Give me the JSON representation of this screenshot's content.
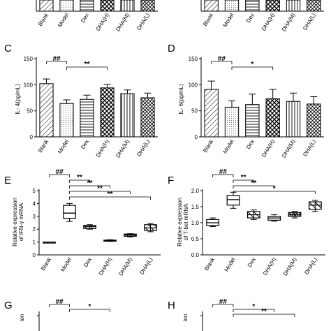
{
  "panels": {
    "A": {
      "letter": "",
      "type": "bar",
      "visible": "xlabels-only",
      "categories": [
        "Blank",
        "Model",
        "Dex",
        "DHA(H)",
        "DHA(M)",
        "DHA(L)"
      ]
    },
    "B": {
      "letter": "",
      "type": "bar",
      "visible": "xlabels-only",
      "categories": [
        "Blank",
        "Model",
        "Dex",
        "DHA(H)",
        "DHA(M)",
        "DHA(L)"
      ]
    },
    "C": {
      "letter": "C",
      "ylabel": "IL- 4(pg/mL)"
    },
    "D": {
      "letter": "D",
      "ylabel": "IL- 6(pg/mL)"
    },
    "E": {
      "letter": "E",
      "ylabel_line1": "Relative expression",
      "ylabel_line2": "of IFN-γ mRNA"
    },
    "F": {
      "letter": "F",
      "ylabel_line1": "Relative expression",
      "ylabel_line2": "of T-bet mRNA"
    },
    "G": {
      "letter": "G",
      "ylabel": "ion",
      "brackets": [
        {
          "label": "##"
        },
        {
          "label": "*"
        }
      ]
    },
    "H": {
      "letter": "H",
      "ylabel": "ion",
      "brackets": [
        {
          "label": "##"
        },
        {
          "label": "*"
        },
        {
          "label": "**"
        }
      ]
    }
  },
  "chart_data": [
    {
      "panel": "C",
      "type": "bar",
      "categories": [
        "Blank",
        "Model",
        "Dex",
        "DHA(H)",
        "DHA(M)",
        "DHA(L)"
      ],
      "values": [
        102,
        64,
        72,
        94,
        83,
        75
      ],
      "errors": [
        9,
        7,
        8,
        7,
        7,
        9
      ],
      "ylabel": "IL- 4(pg/mL)",
      "ylim": [
        0,
        150
      ],
      "yticks": [
        0,
        50,
        100,
        150
      ],
      "brackets": [
        {
          "from": "Blank",
          "to": "Model",
          "label": "##"
        },
        {
          "from": "Model",
          "to": "DHA(H)",
          "label": "**"
        }
      ]
    },
    {
      "panel": "D",
      "type": "bar",
      "categories": [
        "Blank",
        "Model",
        "Dex",
        "DHA(H)",
        "DHA(M)",
        "DHA(L)"
      ],
      "values": [
        91,
        57,
        62,
        73,
        68,
        63
      ],
      "errors": [
        16,
        12,
        20,
        18,
        16,
        14
      ],
      "ylabel": "IL- 6(pg/mL)",
      "ylim": [
        0,
        150
      ],
      "yticks": [
        0,
        50,
        100,
        150
      ],
      "brackets": [
        {
          "from": "Blank",
          "to": "Model",
          "label": "##"
        },
        {
          "from": "Model",
          "to": "DHA(H)",
          "label": "*"
        }
      ]
    },
    {
      "panel": "E",
      "type": "box",
      "categories": [
        "Blank",
        "Model",
        "Dex",
        "DHA(H)",
        "DHA(M)",
        "DHA(L)"
      ],
      "boxes": [
        {
          "min": 1.0,
          "q1": 1.0,
          "median": 1.0,
          "q3": 1.0,
          "max": 1.0
        },
        {
          "min": 2.6,
          "q1": 2.85,
          "median": 3.25,
          "q3": 3.85,
          "max": 4.0
        },
        {
          "min": 2.0,
          "q1": 2.05,
          "median": 2.2,
          "q3": 2.3,
          "max": 2.35
        },
        {
          "min": 1.05,
          "q1": 1.08,
          "median": 1.12,
          "q3": 1.15,
          "max": 1.18
        },
        {
          "min": 1.4,
          "q1": 1.45,
          "median": 1.55,
          "q3": 1.62,
          "max": 1.65
        },
        {
          "min": 1.8,
          "q1": 1.9,
          "median": 2.1,
          "q3": 2.35,
          "max": 2.45
        }
      ],
      "ylabel": "Relative expression of IFN-γ mRNA",
      "ylim": [
        0,
        5
      ],
      "yticks": [
        0,
        1,
        2,
        3,
        4,
        5
      ],
      "brackets": [
        {
          "from": "Blank",
          "to": "Model",
          "label": "##"
        },
        {
          "from": "Model",
          "to": "Dex",
          "label": "**"
        },
        {
          "from": "Model",
          "to": "DHA(H)",
          "label": "**"
        },
        {
          "from": "Model",
          "to": "DHA(M)",
          "label": "**"
        },
        {
          "from": "Model",
          "to": "DHA(L)",
          "label": "**"
        }
      ]
    },
    {
      "panel": "F",
      "type": "box",
      "categories": [
        "Blank",
        "Model",
        "Dex",
        "DHA(H)",
        "DHA(M)",
        "DHA(L)"
      ],
      "boxes": [
        {
          "min": 0.88,
          "q1": 0.92,
          "median": 1.0,
          "q3": 1.1,
          "max": 1.15
        },
        {
          "min": 1.45,
          "q1": 1.55,
          "median": 1.72,
          "q3": 1.85,
          "max": 1.95
        },
        {
          "min": 1.1,
          "q1": 1.15,
          "median": 1.25,
          "q3": 1.35,
          "max": 1.4
        },
        {
          "min": 1.05,
          "q1": 1.08,
          "median": 1.15,
          "q3": 1.2,
          "max": 1.25
        },
        {
          "min": 1.15,
          "q1": 1.2,
          "median": 1.25,
          "q3": 1.32,
          "max": 1.35
        },
        {
          "min": 1.35,
          "q1": 1.42,
          "median": 1.55,
          "q3": 1.65,
          "max": 1.7
        }
      ],
      "ylabel": "Relative expression of T-bet mRNA",
      "ylim": [
        0,
        2.0
      ],
      "yticks": [
        0.0,
        0.5,
        1.0,
        1.5,
        2.0
      ],
      "brackets": [
        {
          "from": "Blank",
          "to": "Model",
          "label": "##"
        },
        {
          "from": "Model",
          "to": "Dex",
          "label": "**"
        },
        {
          "from": "Model",
          "to": "DHA(H)",
          "label": "**"
        },
        {
          "from": "Model",
          "to": "DHA(L)",
          "label": "*"
        }
      ]
    }
  ]
}
